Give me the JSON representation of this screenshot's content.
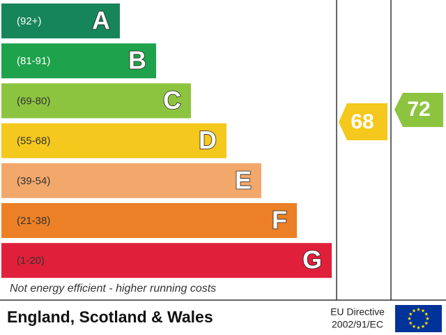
{
  "ratings": [
    {
      "range": "(92+)",
      "letter": "A"
    },
    {
      "range": "(81-91)",
      "letter": "B"
    },
    {
      "range": "(69-80)",
      "letter": "C"
    },
    {
      "range": "(55-68)",
      "letter": "D"
    },
    {
      "range": "(39-54)",
      "letter": "E"
    },
    {
      "range": "(21-38)",
      "letter": "F"
    },
    {
      "range": "(1-20)",
      "letter": "G"
    }
  ],
  "footer_note": "Not energy efficient - higher running costs",
  "current": 68,
  "potential": 72,
  "region": "England, Scotland & Wales",
  "directive": {
    "line1": "EU Directive",
    "line2": "2002/91/EC"
  }
}
